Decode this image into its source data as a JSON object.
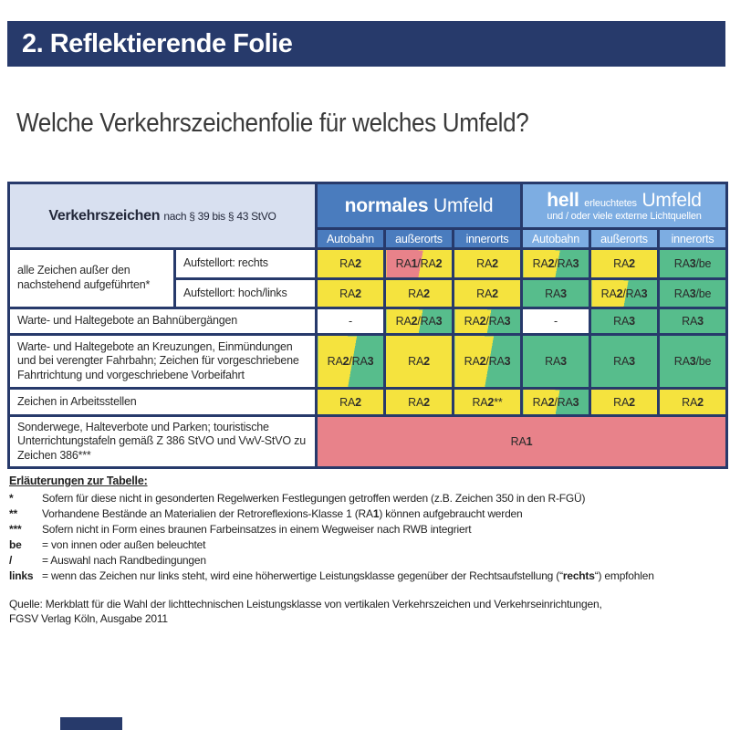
{
  "titlebar": {
    "title": "2. Reflektierende Folie"
  },
  "heading": "Welche Verkehrszeichenfolie für welches Umfeld?",
  "colors": {
    "navy": "#273a6b",
    "blue2": "#4a7cbe",
    "blue3": "#7dade2",
    "cornerbg": "#d8e0f0",
    "yellow": "#f5e33e",
    "green": "#57bd8c",
    "red": "#e8828a"
  },
  "table": {
    "corner": {
      "title": "Verkehrszeichen",
      "subtitle": "nach § 39 bis § 43 StVO"
    },
    "groups": [
      {
        "title_bold": "normales",
        "title_rest": "Umfeld",
        "cols": [
          "Autobahn",
          "außerorts",
          "innerorts"
        ]
      },
      {
        "title_bold": "hell",
        "title_mid": "erleuchtetes",
        "title_rest": "Umfeld",
        "subtitle": "und / oder viele externe Lichtquellen",
        "cols": [
          "Autobahn",
          "außerorts",
          "innerorts"
        ]
      }
    ],
    "rows": [
      {
        "label": "alle Zeichen außer den nachstehend aufgeführten*",
        "sublabel": "Aufstellort: rechts",
        "cells": [
          {
            "v": "RA2",
            "c": "y"
          },
          {
            "v": "RA1/RA2",
            "c": "ry"
          },
          {
            "v": "RA2",
            "c": "y"
          },
          {
            "v": "RA2/RA3",
            "c": "yg"
          },
          {
            "v": "RA2",
            "c": "y"
          },
          {
            "v": "RA3/be",
            "c": "g"
          }
        ]
      },
      {
        "sublabel": "Aufstellort: hoch/links",
        "cells": [
          {
            "v": "RA2",
            "c": "y"
          },
          {
            "v": "RA2",
            "c": "y"
          },
          {
            "v": "RA2",
            "c": "y"
          },
          {
            "v": "RA3",
            "c": "g"
          },
          {
            "v": "RA2/RA3",
            "c": "yg"
          },
          {
            "v": "RA3/be",
            "c": "g"
          }
        ]
      },
      {
        "label": "Warte- und Haltegebote an Bahnübergängen",
        "cells": [
          {
            "v": "-",
            "c": "w"
          },
          {
            "v": "RA2/RA3",
            "c": "yg"
          },
          {
            "v": "RA2/RA3",
            "c": "yg"
          },
          {
            "v": "-",
            "c": "w"
          },
          {
            "v": "RA3",
            "c": "g"
          },
          {
            "v": "RA3",
            "c": "g"
          }
        ]
      },
      {
        "label": "Warte- und Haltegebote an Kreuzungen, Einmündungen und bei verengter Fahrbahn; Zeichen für vorgeschriebene Fahrtrichtung und vorgeschriebene Vorbeifahrt",
        "cells": [
          {
            "v": "RA2/RA3",
            "c": "yg"
          },
          {
            "v": "RA2",
            "c": "y"
          },
          {
            "v": "RA2/RA3",
            "c": "yg"
          },
          {
            "v": "RA3",
            "c": "g"
          },
          {
            "v": "RA3",
            "c": "g"
          },
          {
            "v": "RA3/be",
            "c": "g"
          }
        ]
      },
      {
        "label": "Zeichen in Arbeitsstellen",
        "cells": [
          {
            "v": "RA2",
            "c": "y"
          },
          {
            "v": "RA2",
            "c": "y"
          },
          {
            "v": "RA2**",
            "c": "y"
          },
          {
            "v": "RA2/RA3",
            "c": "yg"
          },
          {
            "v": "RA2",
            "c": "y"
          },
          {
            "v": "RA2",
            "c": "y"
          }
        ]
      },
      {
        "label": "Sonderwege, Halteverbote und Parken; touristische Unterrichtungstafeln gemäß Z 386 StVO und VwV-StVO zu Zeichen 386***",
        "cells": [
          {
            "v": "RA1",
            "c": "r",
            "span": 6
          }
        ]
      }
    ]
  },
  "notes": {
    "title": "Erläuterungen zur Tabelle:",
    "items": [
      {
        "m": "*",
        "seg": [
          [
            "Sofern für diese nicht in gesonderten Regelwerken Festlegungen getroffen werden (z.B. Zeichen 350 in den R-FGÜ)",
            ""
          ]
        ]
      },
      {
        "m": "**",
        "seg": [
          [
            "Vorhandene Bestände an Materialien der Retroreflexions-Klasse 1 (RA",
            ""
          ],
          [
            "1",
            "b"
          ],
          [
            ") können aufgebraucht werden",
            ""
          ]
        ]
      },
      {
        "m": "***",
        "seg": [
          [
            "Sofern nicht in Form eines braunen Farbeinsatzes in einem Wegweiser nach RWB integriert",
            ""
          ]
        ]
      },
      {
        "m": "be",
        "seg": [
          [
            "= von innen oder außen beleuchtet",
            ""
          ]
        ]
      },
      {
        "m": "/",
        "seg": [
          [
            "= Auswahl nach Randbedingungen",
            ""
          ]
        ]
      },
      {
        "m": "links",
        "seg": [
          [
            "= wenn das Zeichen nur links steht, wird eine höherwertige Leistungsklasse gegenüber der Rechtsaufstellung (“",
            ""
          ],
          [
            "rechts",
            "b"
          ],
          [
            "“) empfohlen",
            ""
          ]
        ]
      }
    ]
  },
  "source": {
    "line1": "Quelle: Merkblatt für die Wahl der lichttechnischen Leistungsklasse von vertikalen Verkehrszeichen und Verkehrseinrichtungen,",
    "line2": "FGSV Verlag Köln, Ausgabe 2011"
  }
}
